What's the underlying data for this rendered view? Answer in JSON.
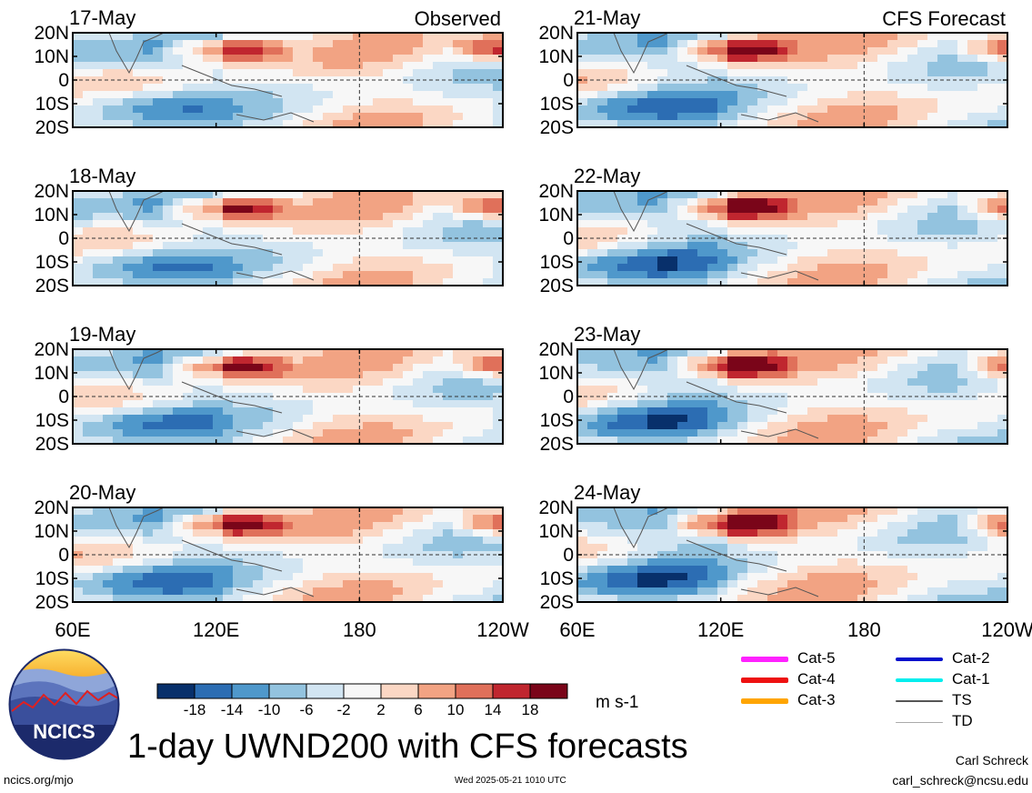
{
  "figure": {
    "title": "1-day UWND200 with CFS forecasts",
    "units": "m s-1",
    "site": "ncics.org/mjo",
    "timestamp": "Wed 2025-05-21 1010 UTC",
    "author": "Carl Schreck",
    "email": "carl_schreck@ncsu.edu",
    "logo_text": "NCICS"
  },
  "columns": {
    "observed": {
      "label": "Observed"
    },
    "forecast": {
      "label": "CFS Forecast"
    }
  },
  "panels": [
    {
      "date": "17-May",
      "kind": "observed",
      "column": 0,
      "row": 0
    },
    {
      "date": "18-May",
      "kind": "observed",
      "column": 0,
      "row": 1
    },
    {
      "date": "19-May",
      "kind": "observed",
      "column": 0,
      "row": 2
    },
    {
      "date": "20-May",
      "kind": "observed",
      "column": 0,
      "row": 3
    },
    {
      "date": "21-May",
      "kind": "forecast",
      "column": 1,
      "row": 0
    },
    {
      "date": "22-May",
      "kind": "forecast",
      "column": 1,
      "row": 1
    },
    {
      "date": "23-May",
      "kind": "forecast",
      "column": 1,
      "row": 2
    },
    {
      "date": "24-May",
      "kind": "forecast",
      "column": 1,
      "row": 3
    }
  ],
  "axes": {
    "lat_ticks": [
      "20N",
      "10N",
      "0",
      "10S",
      "20S"
    ],
    "lon_ticks": [
      "60E",
      "120E",
      "180",
      "120W"
    ],
    "lon_range": [
      60,
      240
    ],
    "lat_range": [
      -20,
      20
    ]
  },
  "colorbar": {
    "labels": [
      "-18",
      "-14",
      "-10",
      "-6",
      "-2",
      "2",
      "6",
      "10",
      "14",
      "18"
    ],
    "colors": [
      "#08306b",
      "#2c6db3",
      "#4f98cb",
      "#93c3df",
      "#d2e5f2",
      "#f7f7f7",
      "#fbd7c4",
      "#f2a383",
      "#e0705a",
      "#c0262f",
      "#7a0519"
    ]
  },
  "storm_legend": [
    {
      "label": "Cat-5",
      "color": "#ff22ff",
      "width": 6
    },
    {
      "label": "Cat-4",
      "color": "#ee1111",
      "width": 6
    },
    {
      "label": "Cat-3",
      "color": "#ffa500",
      "width": 6
    },
    {
      "label": "Cat-2",
      "color": "#0011cc",
      "width": 4
    },
    {
      "label": "Cat-1",
      "color": "#00eeee",
      "width": 4
    },
    {
      "label": "TS",
      "color": "#555555",
      "width": 2
    },
    {
      "label": "TD",
      "color": "#aaaaaa",
      "width": 1
    }
  ]
}
